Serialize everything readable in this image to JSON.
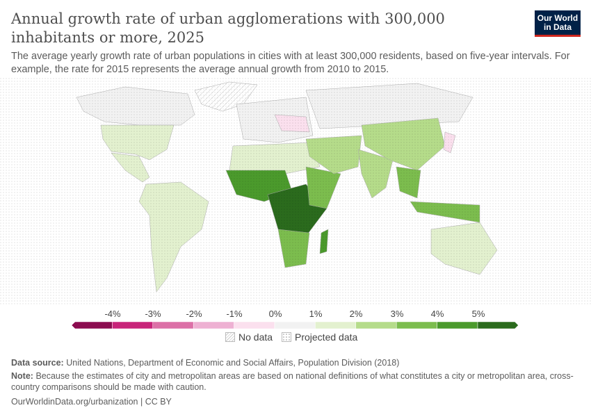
{
  "header": {
    "title": "Annual growth rate of urban agglomerations with 300,000 inhabitants or more, 2025",
    "subtitle": "The average yearly growth rate of urban populations in cities with at least 300,000 residents, based on five-year intervals. For example, the rate for 2015 represents the average annual growth from 2010 to 2015.",
    "logo": "Our World in Data"
  },
  "legend": {
    "ticks": [
      "-4%",
      "-3%",
      "-2%",
      "-1%",
      "0%",
      "1%",
      "2%",
      "3%",
      "4%",
      "5%"
    ],
    "colors": [
      "#8c0c50",
      "#c8247a",
      "#dc70a7",
      "#eeb1d3",
      "#fbe0ee",
      "#f2f2f2",
      "#e3f1cf",
      "#b5dc8a",
      "#7cbd4e",
      "#4b9a2c",
      "#2b6b1d"
    ],
    "no_data": "No data",
    "projected": "Projected data"
  },
  "footer": {
    "source_label": "Data source:",
    "source": "United Nations, Department of Economic and Social Affairs, Population Division (2018)",
    "note_label": "Note:",
    "note": "Because the estimates of city and metropolitan areas are based on national definitions of what constitutes a city or metropolitan area, cross-country comparisons should be made with caution.",
    "url": "OurWorldinData.org/urbanization | CC BY"
  }
}
